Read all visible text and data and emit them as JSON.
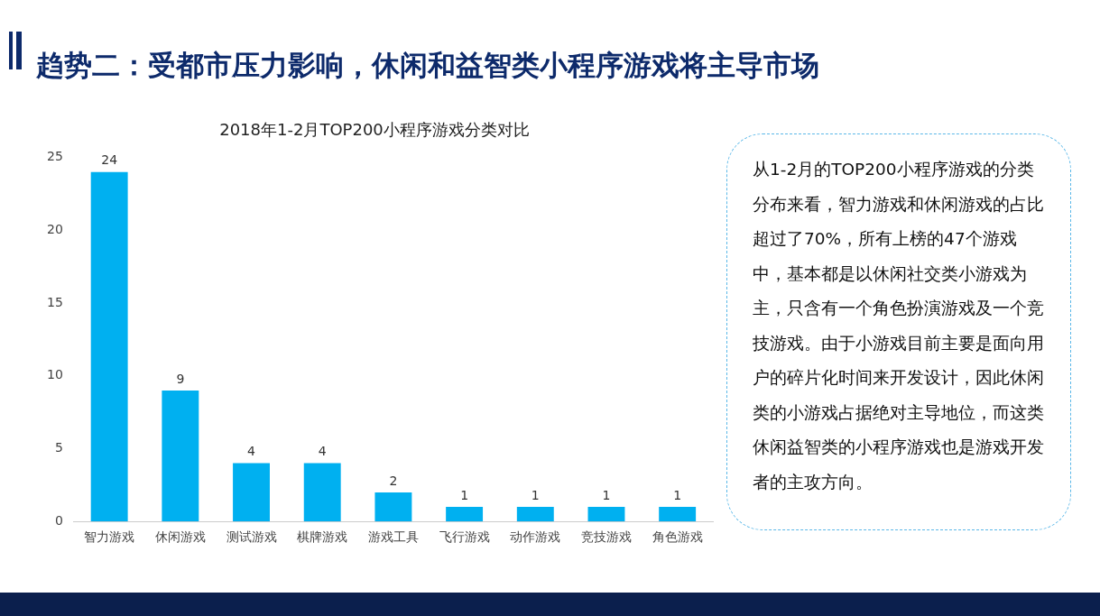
{
  "chart_data": {
    "type": "bar",
    "title": "趋势二：受都市压力影响，休闲和益智类小程序游戏将主导市场",
    "subtitle": "2018年1-2月TOP200小程序游戏分类对比",
    "categories": [
      "智力游戏",
      "休闲游戏",
      "测试游戏",
      "棋牌游戏",
      "游戏工具",
      "飞行游戏",
      "动作游戏",
      "竞技游戏",
      "角色游戏"
    ],
    "values": [
      24,
      9,
      4,
      4,
      2,
      1,
      1,
      1,
      1
    ],
    "color": "#00b0f0",
    "ylim": [
      0,
      25
    ],
    "yticks": [
      0,
      5,
      10,
      15,
      20,
      25
    ],
    "grid": false,
    "data_labels": true,
    "annotations": [
      "从1-2月的TOP200小程序游戏的分类分布来看，智力游戏和休闲游戏的占比超过了70%，所有上榜的47个游戏中，基本都是以休闲社交类小游戏为主，只含有一个角色扮演游戏及一个竞技游戏。由于小游戏目前主要是面向用户的碎片化时间来开发设计，因此休闲类的小游戏占据绝对主导地位，而这类休闲益智类的小程序游戏也是游戏开发者的主攻方向。"
    ]
  }
}
